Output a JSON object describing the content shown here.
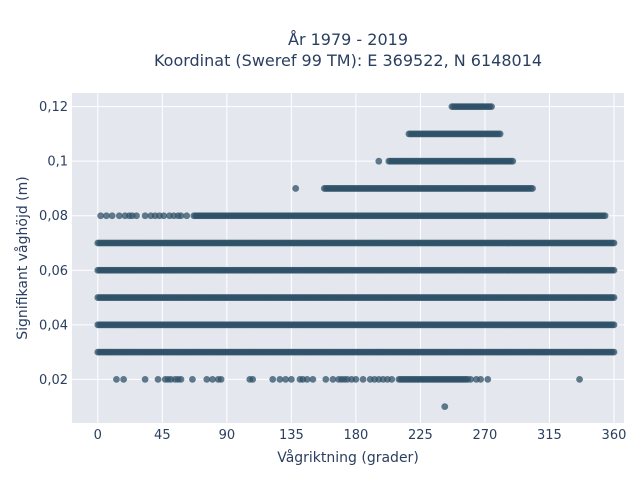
{
  "chart_data": {
    "type": "scatter",
    "title_line1": "År 1979 - 2019",
    "title_line2": "Koordinat (Sweref 99 TM): E 369522, N 6148014",
    "xlabel": "Vågriktning (grader)",
    "ylabel": "Signifikant våghöjd (m)",
    "xlim": [
      -18,
      367
    ],
    "ylim": [
      0.004,
      0.125
    ],
    "xticks": [
      0,
      45,
      90,
      135,
      180,
      225,
      270,
      315,
      360
    ],
    "xtick_labels": [
      "0",
      "45",
      "90",
      "135",
      "180",
      "225",
      "270",
      "315",
      "360"
    ],
    "yticks": [
      0.02,
      0.04,
      0.06,
      0.08,
      0.1,
      0.12
    ],
    "ytick_labels": [
      "0,02",
      "0,04",
      "0,06",
      "0,08",
      "0,1",
      "0,12"
    ],
    "grid": true,
    "marker_color": "#2f5168",
    "plot_background": "#e5e7ef",
    "bands": [
      {
        "y": 0.12,
        "x_from": 247,
        "x_to": 275
      },
      {
        "y": 0.11,
        "x_from": 217,
        "x_to": 281
      },
      {
        "y": 0.1,
        "x_from": 203,
        "x_to": 290
      },
      {
        "y": 0.09,
        "x_from": 158,
        "x_to": 304
      },
      {
        "y": 0.08,
        "x_from": 67,
        "x_to": 354
      },
      {
        "y": 0.07,
        "x_from": 0,
        "x_to": 360
      },
      {
        "y": 0.06,
        "x_from": 0,
        "x_to": 360
      },
      {
        "y": 0.05,
        "x_from": 0,
        "x_to": 360
      },
      {
        "y": 0.04,
        "x_from": 0,
        "x_to": 360
      },
      {
        "y": 0.03,
        "x_from": 0,
        "x_to": 360
      },
      {
        "y": 0.02,
        "x_from": 210,
        "x_to": 258
      }
    ],
    "sparse_points": [
      [
        2,
        0.08
      ],
      [
        6,
        0.08
      ],
      [
        10,
        0.08
      ],
      [
        15,
        0.08
      ],
      [
        19,
        0.08
      ],
      [
        22,
        0.08
      ],
      [
        24,
        0.08
      ],
      [
        27,
        0.08
      ],
      [
        33,
        0.08
      ],
      [
        37,
        0.08
      ],
      [
        40,
        0.08
      ],
      [
        43,
        0.08
      ],
      [
        46,
        0.08
      ],
      [
        50,
        0.08
      ],
      [
        53,
        0.08
      ],
      [
        56,
        0.08
      ],
      [
        58,
        0.08
      ],
      [
        62,
        0.08
      ],
      [
        196,
        0.1
      ],
      [
        138,
        0.09
      ],
      [
        13,
        0.02
      ],
      [
        18,
        0.02
      ],
      [
        33,
        0.02
      ],
      [
        42,
        0.02
      ],
      [
        47,
        0.02
      ],
      [
        49,
        0.02
      ],
      [
        51,
        0.02
      ],
      [
        54,
        0.02
      ],
      [
        56,
        0.02
      ],
      [
        58,
        0.02
      ],
      [
        66,
        0.02
      ],
      [
        76,
        0.02
      ],
      [
        80,
        0.02
      ],
      [
        84,
        0.02
      ],
      [
        86,
        0.02
      ],
      [
        106,
        0.02
      ],
      [
        108,
        0.02
      ],
      [
        122,
        0.02
      ],
      [
        127,
        0.02
      ],
      [
        131,
        0.02
      ],
      [
        135,
        0.02
      ],
      [
        141,
        0.02
      ],
      [
        143,
        0.02
      ],
      [
        146,
        0.02
      ],
      [
        150,
        0.02
      ],
      [
        159,
        0.02
      ],
      [
        164,
        0.02
      ],
      [
        168,
        0.02
      ],
      [
        170,
        0.02
      ],
      [
        172,
        0.02
      ],
      [
        174,
        0.02
      ],
      [
        177,
        0.02
      ],
      [
        180,
        0.02
      ],
      [
        185,
        0.02
      ],
      [
        190,
        0.02
      ],
      [
        193,
        0.02
      ],
      [
        196,
        0.02
      ],
      [
        199,
        0.02
      ],
      [
        202,
        0.02
      ],
      [
        205,
        0.02
      ],
      [
        260,
        0.02
      ],
      [
        264,
        0.02
      ],
      [
        267,
        0.02
      ],
      [
        272,
        0.02
      ],
      [
        336,
        0.02
      ],
      [
        242,
        0.01
      ]
    ]
  }
}
